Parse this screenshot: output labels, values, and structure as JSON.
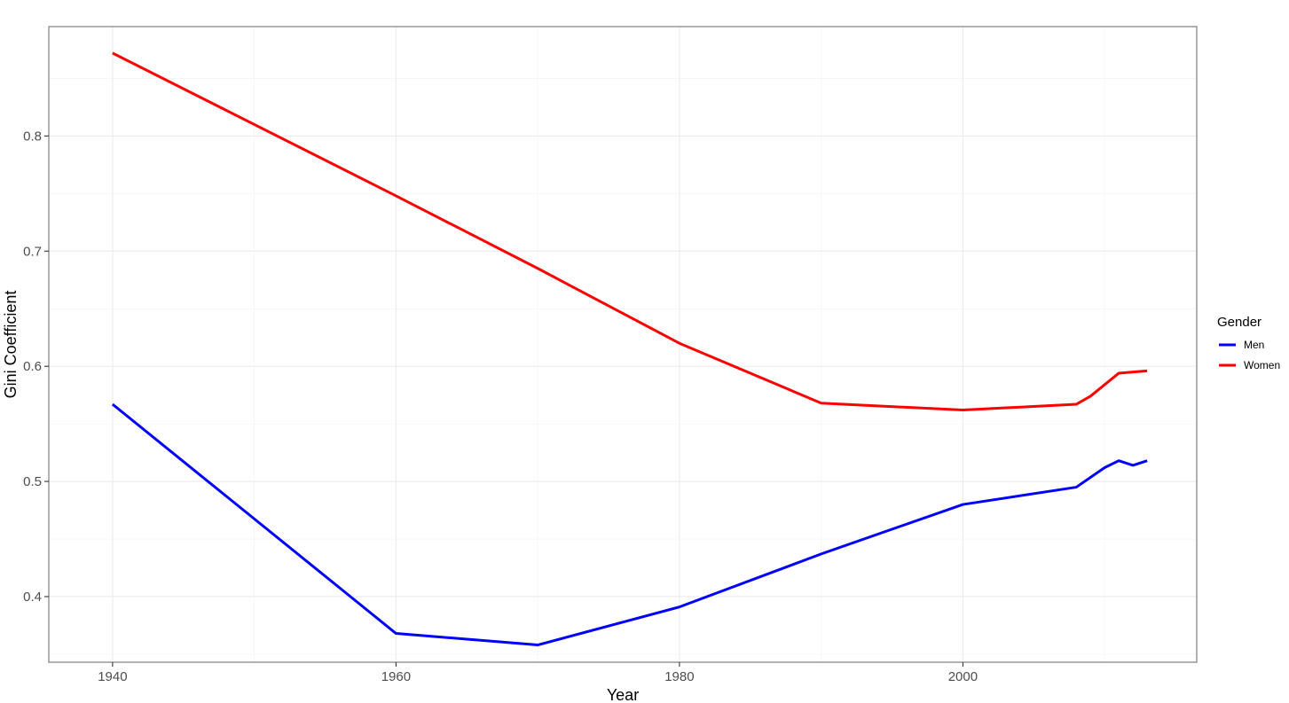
{
  "chart_data": {
    "type": "line",
    "title": "",
    "xlabel": "Year",
    "ylabel": "Gini Coefficient",
    "xlim": [
      1935.5,
      2016.5
    ],
    "ylim": [
      0.343,
      0.895
    ],
    "x_ticks": [
      1940,
      1960,
      1980,
      2000
    ],
    "x_tick_labels": [
      "1940",
      "1960",
      "1980",
      "2000"
    ],
    "y_ticks": [
      0.4,
      0.5,
      0.6,
      0.7,
      0.8
    ],
    "y_tick_labels": [
      "0.4",
      "0.5",
      "0.6",
      "0.7",
      "0.8"
    ],
    "grid": true,
    "legend": {
      "title": "Gender",
      "position": "right"
    },
    "series": [
      {
        "name": "Men",
        "color": "#0000ff",
        "x": [
          1940,
          1960,
          1970,
          1980,
          1990,
          2000,
          2008,
          2010,
          2011,
          2012,
          2013
        ],
        "values": [
          0.567,
          0.368,
          0.358,
          0.391,
          0.437,
          0.48,
          0.495,
          0.512,
          0.518,
          0.514,
          0.518
        ]
      },
      {
        "name": "Women",
        "color": "#ff0000",
        "x": [
          1940,
          1960,
          1970,
          1980,
          1990,
          2000,
          2008,
          2009,
          2010,
          2011,
          2012,
          2013
        ],
        "values": [
          0.872,
          0.748,
          0.685,
          0.62,
          0.568,
          0.562,
          0.567,
          0.574,
          0.584,
          0.594,
          0.595,
          0.596
        ]
      }
    ]
  }
}
